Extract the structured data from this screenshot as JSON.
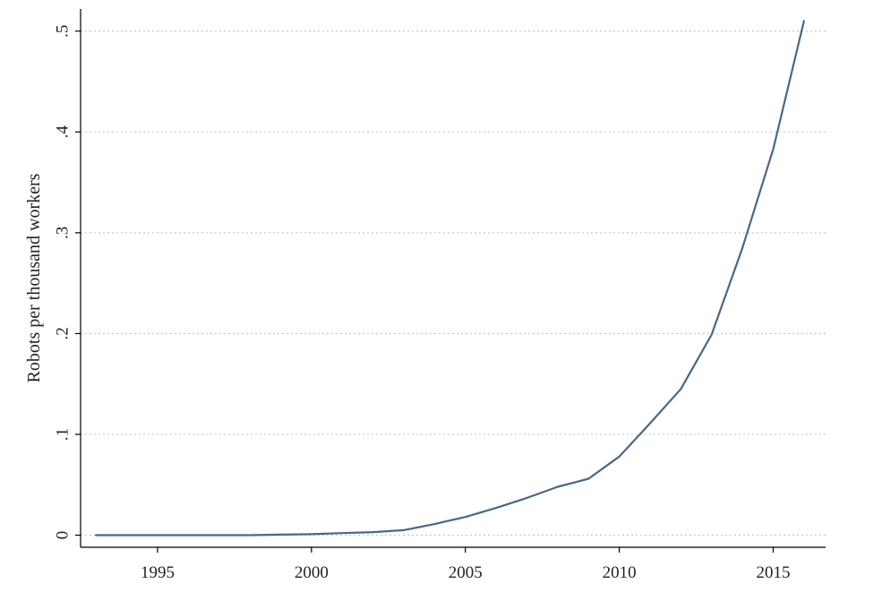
{
  "chart_data": {
    "type": "line",
    "title": "",
    "xlabel": "",
    "ylabel": "Robots per thousand workers",
    "xlim": [
      1992.5,
      2016.7
    ],
    "ylim": [
      -0.012,
      0.522
    ],
    "grid": true,
    "x_ticks": [
      1995,
      2000,
      2005,
      2010,
      2015
    ],
    "x_tick_labels": [
      "1995",
      "2000",
      "2005",
      "2010",
      "2015"
    ],
    "y_ticks": [
      0,
      0.1,
      0.2,
      0.3,
      0.4,
      0.5
    ],
    "y_tick_labels": [
      "0",
      ".1",
      ".2",
      ".3",
      ".4",
      ".5"
    ],
    "line_color": "#4a6784",
    "grid_color": "#c8c8c8",
    "series": [
      {
        "x": [
          1993,
          1994,
          1995,
          1996,
          1997,
          1998,
          1999,
          2000,
          2001,
          2002,
          2003,
          2004,
          2005,
          2006,
          2007,
          2008,
          2009,
          2010,
          2011,
          2012,
          2013,
          2014,
          2015,
          2016
        ],
        "values": [
          0,
          0,
          0,
          0,
          0,
          0,
          0.0005,
          0.001,
          0.002,
          0.003,
          0.005,
          0.011,
          0.018,
          0.027,
          0.037,
          0.048,
          0.056,
          0.078,
          0.111,
          0.145,
          0.199,
          0.285,
          0.383,
          0.51
        ]
      }
    ]
  }
}
